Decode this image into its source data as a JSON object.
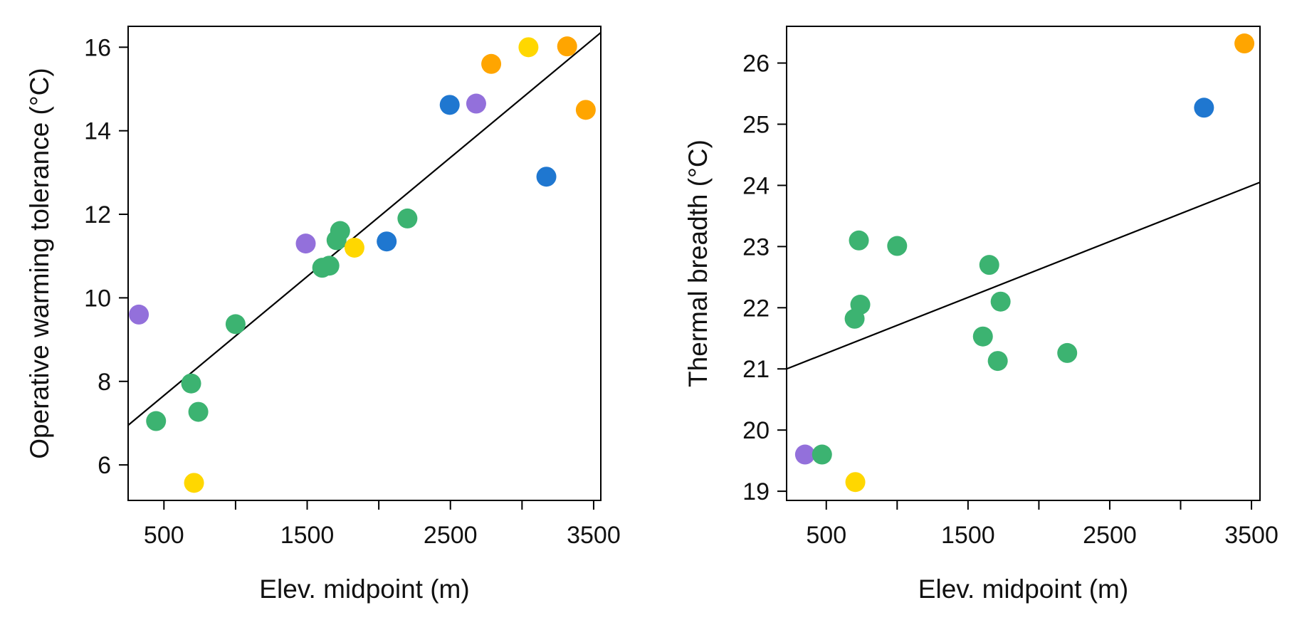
{
  "chart_data": [
    {
      "type": "scatter",
      "xlabel": "Elev. midpoint (m)",
      "ylabel": "Operative warming tolerance  (°C)",
      "xlim": [
        250,
        3550
      ],
      "ylim": [
        5.15,
        16.5
      ],
      "xticks": [
        500,
        1000,
        1500,
        2000,
        2500,
        3000,
        3500
      ],
      "xtick_labels": [
        "500",
        "",
        "1500",
        "",
        "2500",
        "",
        "3500"
      ],
      "yticks": [
        6,
        8,
        10,
        12,
        14,
        16
      ],
      "ytick_labels": [
        "6",
        "8",
        "10",
        "12",
        "14",
        "16"
      ],
      "grid": false,
      "series": [
        {
          "color": "#9370DB",
          "points": [
            [
              325,
              9.6
            ],
            [
              1490,
              11.3
            ],
            [
              2680,
              14.65
            ]
          ]
        },
        {
          "color": "#3CB371",
          "points": [
            [
              445,
              7.05
            ],
            [
              690,
              7.95
            ],
            [
              740,
              7.27
            ],
            [
              1000,
              9.37
            ],
            [
              1605,
              10.72
            ],
            [
              1655,
              10.77
            ],
            [
              1705,
              11.38
            ],
            [
              1730,
              11.6
            ],
            [
              2200,
              11.9
            ]
          ]
        },
        {
          "color": "#FFD700",
          "points": [
            [
              710,
              5.57
            ],
            [
              1830,
              11.2
            ],
            [
              3045,
              16.0
            ]
          ]
        },
        {
          "color": "#1F77D0",
          "points": [
            [
              2055,
              11.35
            ],
            [
              2495,
              14.62
            ],
            [
              3170,
              12.9
            ]
          ]
        },
        {
          "color": "#FFA500",
          "points": [
            [
              2785,
              15.6
            ],
            [
              3315,
              16.02
            ],
            [
              3445,
              14.5
            ]
          ]
        }
      ],
      "regression_line": {
        "x": [
          250,
          3550
        ],
        "y": [
          6.95,
          16.35
        ]
      }
    },
    {
      "type": "scatter",
      "xlabel": "Elev. midpoint (m)",
      "ylabel": "Thermal breadth  (°C)",
      "xlim": [
        220,
        3560
      ],
      "ylim": [
        18.85,
        26.6
      ],
      "xticks": [
        500,
        1000,
        1500,
        2000,
        2500,
        3000,
        3500
      ],
      "xtick_labels": [
        "500",
        "",
        "1500",
        "",
        "2500",
        "",
        "3500"
      ],
      "yticks": [
        19,
        20,
        21,
        22,
        23,
        24,
        25,
        26
      ],
      "ytick_labels": [
        "19",
        "20",
        "21",
        "22",
        "23",
        "24",
        "25",
        "26"
      ],
      "grid": false,
      "series": [
        {
          "color": "#9370DB",
          "points": [
            [
              350,
              19.6
            ]
          ]
        },
        {
          "color": "#3CB371",
          "points": [
            [
              470,
              19.6
            ],
            [
              700,
              21.82
            ],
            [
              730,
              23.1
            ],
            [
              740,
              22.05
            ],
            [
              1000,
              23.01
            ],
            [
              1605,
              21.53
            ],
            [
              1650,
              22.7
            ],
            [
              1710,
              21.13
            ],
            [
              1730,
              22.1
            ],
            [
              2200,
              21.26
            ]
          ]
        },
        {
          "color": "#FFD700",
          "points": [
            [
              705,
              19.15
            ]
          ]
        },
        {
          "color": "#1F77D0",
          "points": [
            [
              3165,
              25.27
            ]
          ]
        },
        {
          "color": "#FFA500",
          "points": [
            [
              3450,
              26.32
            ]
          ]
        }
      ],
      "regression_line": {
        "x": [
          220,
          3560
        ],
        "y": [
          21.0,
          24.05
        ]
      }
    }
  ]
}
